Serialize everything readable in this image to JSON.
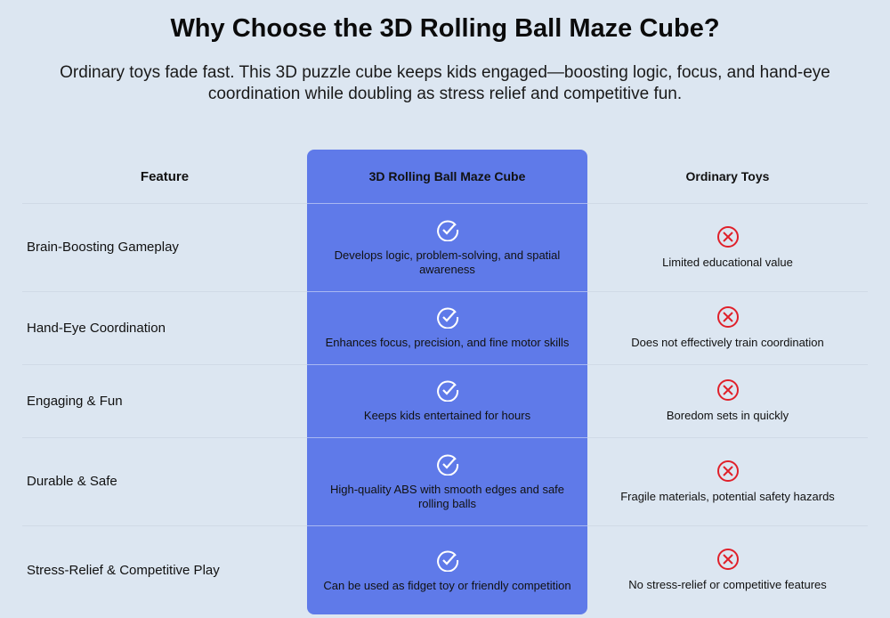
{
  "title": "Why Choose the 3D Rolling Ball Maze Cube?",
  "subtitle": "Ordinary toys fade fast. This 3D puzzle cube keeps kids engaged—boosting logic, focus, and hand-eye coordination while doubling as stress relief and competitive fun.",
  "colors": {
    "accent": "#5f7ae9",
    "cross": "#e0202a",
    "background": "#dce6f1"
  },
  "table": {
    "headers": [
      "Feature",
      "3D Rolling Ball Maze Cube",
      "Ordinary Toys"
    ],
    "rows": [
      {
        "feature": "Brain-Boosting Gameplay",
        "cube": "Develops logic, problem-solving, and spatial awareness",
        "ordinary": "Limited educational value"
      },
      {
        "feature": "Hand-Eye Coordination",
        "cube": "Enhances focus, precision, and fine motor skills",
        "ordinary": "Does not effectively train coordination"
      },
      {
        "feature": "Engaging & Fun",
        "cube": "Keeps kids entertained for hours",
        "ordinary": "Boredom sets in quickly"
      },
      {
        "feature": "Durable & Safe",
        "cube": "High-quality ABS with smooth edges and safe rolling balls",
        "ordinary": "Fragile materials, potential safety hazards"
      },
      {
        "feature": "Stress-Relief & Competitive Play",
        "cube": "Can be used as fidget toy or friendly competition",
        "ordinary": "No stress-relief or competitive features"
      }
    ],
    "cube_icon": "check-circle-icon",
    "ordinary_icon": "x-circle-icon"
  }
}
